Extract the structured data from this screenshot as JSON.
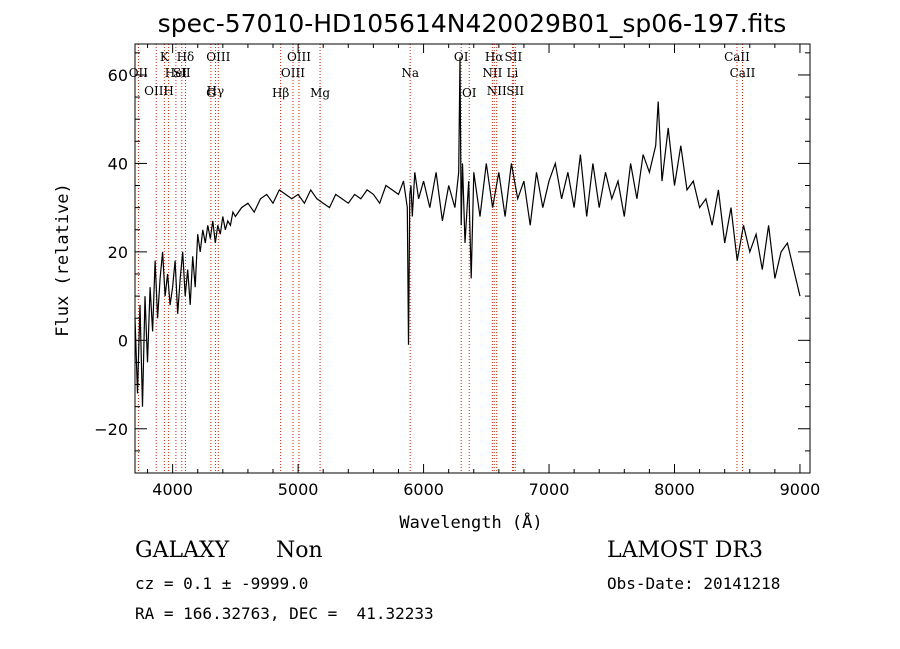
{
  "chart_data": {
    "type": "line",
    "title": "spec-57010-HD105614N420029B01_sp06-197.fits",
    "xlabel": "Wavelength (Å)",
    "ylabel": "Flux (relative)",
    "xlim": [
      3700,
      9080
    ],
    "ylim": [
      -30,
      67
    ],
    "xticks": [
      4000,
      5000,
      6000,
      7000,
      8000,
      9000
    ],
    "yticks": [
      -20,
      0,
      20,
      40,
      60
    ],
    "grid": false,
    "line_color": "#000000",
    "marker_color": "#cc2200",
    "series": [
      {
        "x": [
          3700,
          3720,
          3740,
          3760,
          3780,
          3800,
          3820,
          3840,
          3860,
          3880,
          3900,
          3920,
          3940,
          3960,
          3980,
          4000,
          4020,
          4040,
          4060,
          4080,
          4100,
          4120,
          4140,
          4160,
          4180,
          4200,
          4220,
          4240,
          4260,
          4280,
          4300,
          4320,
          4340,
          4360,
          4380,
          4400,
          4420,
          4440,
          4460,
          4480,
          4500,
          4550,
          4600,
          4650,
          4700,
          4750,
          4800,
          4850,
          4900,
          4950,
          5000,
          5050,
          5100,
          5150,
          5200,
          5250,
          5300,
          5350,
          5400,
          5450,
          5500,
          5550,
          5600,
          5650,
          5700,
          5750,
          5800,
          5840,
          5870,
          5880,
          5890,
          5900,
          5910,
          5930,
          5960,
          6000,
          6050,
          6100,
          6150,
          6200,
          6250,
          6280,
          6290,
          6300,
          6310,
          6330,
          6360,
          6380,
          6400,
          6450,
          6500,
          6550,
          6600,
          6650,
          6700,
          6750,
          6800,
          6850,
          6900,
          6950,
          7000,
          7050,
          7100,
          7150,
          7200,
          7250,
          7300,
          7350,
          7400,
          7450,
          7500,
          7550,
          7600,
          7650,
          7700,
          7750,
          7800,
          7850,
          7870,
          7900,
          7950,
          8000,
          8050,
          8100,
          8150,
          8200,
          8250,
          8300,
          8350,
          8400,
          8450,
          8500,
          8550,
          8600,
          8650,
          8700,
          8750,
          8800,
          8850,
          8900,
          8950,
          9000
        ],
        "y": [
          5,
          -12,
          8,
          -15,
          10,
          -5,
          12,
          2,
          18,
          5,
          14,
          20,
          10,
          15,
          8,
          12,
          18,
          6,
          14,
          20,
          10,
          16,
          8,
          19,
          12,
          24,
          20,
          25,
          22,
          26,
          23,
          27,
          22,
          26,
          24,
          28,
          25,
          27,
          26,
          29,
          28,
          30,
          31,
          29,
          32,
          33,
          31,
          34,
          33,
          32,
          33,
          31,
          34,
          32,
          31,
          30,
          33,
          32,
          31,
          33,
          32,
          34,
          33,
          31,
          35,
          34,
          33,
          36,
          30,
          -1,
          33,
          35,
          28,
          38,
          32,
          36,
          30,
          38,
          27,
          35,
          30,
          38,
          64,
          26,
          40,
          22,
          36,
          14,
          38,
          28,
          40,
          30,
          38,
          28,
          40,
          32,
          36,
          26,
          38,
          30,
          36,
          40,
          32,
          38,
          30,
          42,
          28,
          40,
          30,
          38,
          32,
          36,
          28,
          40,
          32,
          42,
          38,
          44,
          54,
          36,
          48,
          35,
          44,
          34,
          36,
          30,
          32,
          26,
          34,
          22,
          30,
          18,
          26,
          20,
          24,
          16,
          26,
          14,
          20,
          22,
          16,
          10
        ]
      }
    ],
    "line_markers": [
      {
        "wavelength": 3934,
        "label": "K",
        "row": 1
      },
      {
        "wavelength": 3968,
        "label": "H",
        "row": 3
      },
      {
        "wavelength": 3727,
        "label": "OII",
        "row": 2
      },
      {
        "wavelength": 3869,
        "label": "OIII",
        "row": 3
      },
      {
        "wavelength": 4102,
        "label": "Hδ",
        "row": 1
      },
      {
        "wavelength": 4026,
        "label": "HeI",
        "row": 2
      },
      {
        "wavelength": 4341,
        "label": "Hγ",
        "row": 3
      },
      {
        "wavelength": 4073,
        "label": "SII",
        "row": 2
      },
      {
        "wavelength": 4305,
        "label": "G",
        "row": 4
      },
      {
        "wavelength": 4364,
        "label": "OIII",
        "row": 1
      },
      {
        "wavelength": 4861,
        "label": "Hβ",
        "row": 4
      },
      {
        "wavelength": 4959,
        "label": "OIII",
        "row": 2
      },
      {
        "wavelength": 5007,
        "label": "OIII",
        "row": 1
      },
      {
        "wavelength": 5175,
        "label": "Mg",
        "row": 4
      },
      {
        "wavelength": 5893,
        "label": "Na",
        "row": 2
      },
      {
        "wavelength": 6300,
        "label": "OI",
        "row": 1
      },
      {
        "wavelength": 6364,
        "label": "OI",
        "row": 4
      },
      {
        "wavelength": 6548,
        "label": "NII",
        "row": 2
      },
      {
        "wavelength": 6563,
        "label": "Hα",
        "row": 1
      },
      {
        "wavelength": 6583,
        "label": "NII",
        "row": 3
      },
      {
        "wavelength": 6708,
        "label": "Li",
        "row": 2
      },
      {
        "wavelength": 6716,
        "label": "SII",
        "row": 1
      },
      {
        "wavelength": 6731,
        "label": "SII",
        "row": 3
      },
      {
        "wavelength": 8498,
        "label": "CaII",
        "row": 1
      },
      {
        "wavelength": 8542,
        "label": "CaII",
        "row": 2
      }
    ]
  },
  "info": {
    "object_type": "GALAXY",
    "subclass": "Non",
    "survey": "LAMOST DR3",
    "cz_line": "cz = 0.1 ± -9999.0",
    "obs_date_line": "Obs-Date: 20141218",
    "coords_line": "RA = 166.32763, DEC =  41.32233"
  }
}
